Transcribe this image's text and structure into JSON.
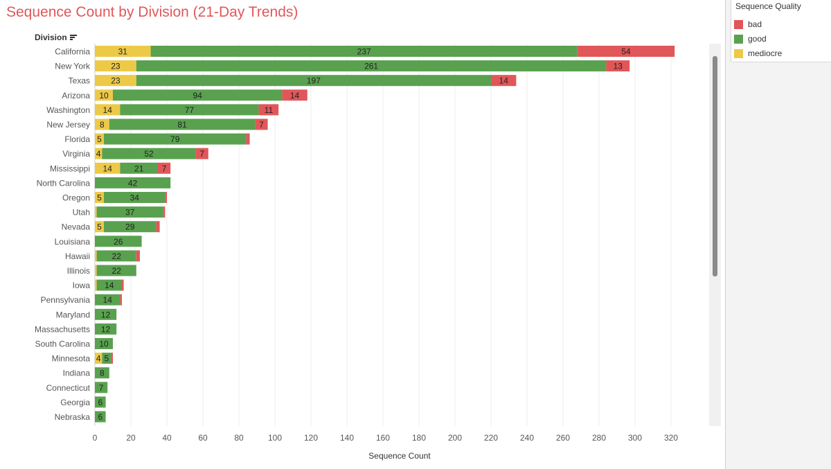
{
  "title": "Sequence Count by Division (21-Day Trends)",
  "row_header": "Division",
  "legend": {
    "title": "Sequence Quality",
    "items": [
      {
        "label": "bad",
        "color": "#e15759"
      },
      {
        "label": "good",
        "color": "#59a14f"
      },
      {
        "label": "mediocre",
        "color": "#edc948"
      }
    ]
  },
  "chart_data": {
    "type": "bar",
    "orientation": "horizontal",
    "stacked": true,
    "xlabel": "Sequence Count",
    "xlim": [
      0,
      340
    ],
    "xticks": [
      0,
      20,
      40,
      60,
      80,
      100,
      120,
      140,
      160,
      180,
      200,
      220,
      240,
      260,
      280,
      300,
      320
    ],
    "grid": "vertical",
    "legend_position": "right",
    "categories": [
      "California",
      "New York",
      "Texas",
      "Arizona",
      "Washington",
      "New Jersey",
      "Florida",
      "Virginia",
      "Mississippi",
      "North Carolina",
      "Oregon",
      "Utah",
      "Nevada",
      "Louisiana",
      "Hawaii",
      "Illinois",
      "Iowa",
      "Pennsylvania",
      "Maryland",
      "Massachusetts",
      "South Carolina",
      "Minnesota",
      "Indiana",
      "Connecticut",
      "Georgia",
      "Nebraska"
    ],
    "series": [
      {
        "name": "mediocre",
        "color": "#edc948",
        "values": [
          31,
          23,
          23,
          10,
          14,
          8,
          5,
          4,
          14,
          0,
          5,
          1,
          5,
          0,
          1,
          1,
          1,
          0,
          0,
          0,
          0,
          4,
          0,
          0,
          0,
          0
        ],
        "labels": [
          "31",
          "23",
          "23",
          "10",
          "14",
          "8",
          "5",
          "4",
          "14",
          "",
          "5",
          "",
          "5",
          "",
          "",
          "",
          "",
          "",
          "",
          "",
          "",
          "4",
          "",
          "",
          "",
          ""
        ]
      },
      {
        "name": "good",
        "color": "#59a14f",
        "values": [
          237,
          261,
          197,
          94,
          77,
          81,
          79,
          52,
          21,
          42,
          34,
          37,
          29,
          26,
          22,
          22,
          14,
          14,
          12,
          12,
          10,
          5,
          8,
          7,
          6,
          6
        ],
        "labels": [
          "237",
          "261",
          "197",
          "94",
          "77",
          "81",
          "79",
          "52",
          "21",
          "42",
          "34",
          "37",
          "29",
          "26",
          "22",
          "22",
          "14",
          "14",
          "12",
          "12",
          "10",
          "5",
          "8",
          "7",
          "6",
          "6"
        ]
      },
      {
        "name": "bad",
        "color": "#e15759",
        "values": [
          54,
          13,
          14,
          14,
          11,
          7,
          2,
          7,
          7,
          0,
          1,
          1,
          2,
          0,
          2,
          0,
          1,
          1,
          0,
          0,
          0,
          1,
          0,
          0,
          0,
          0
        ],
        "labels": [
          "54",
          "13",
          "14",
          "14",
          "11",
          "7",
          "",
          "7",
          "7",
          "",
          "",
          "",
          "",
          "",
          "",
          "",
          "",
          "",
          "",
          "",
          "",
          "",
          "",
          "",
          "",
          ""
        ]
      }
    ]
  }
}
